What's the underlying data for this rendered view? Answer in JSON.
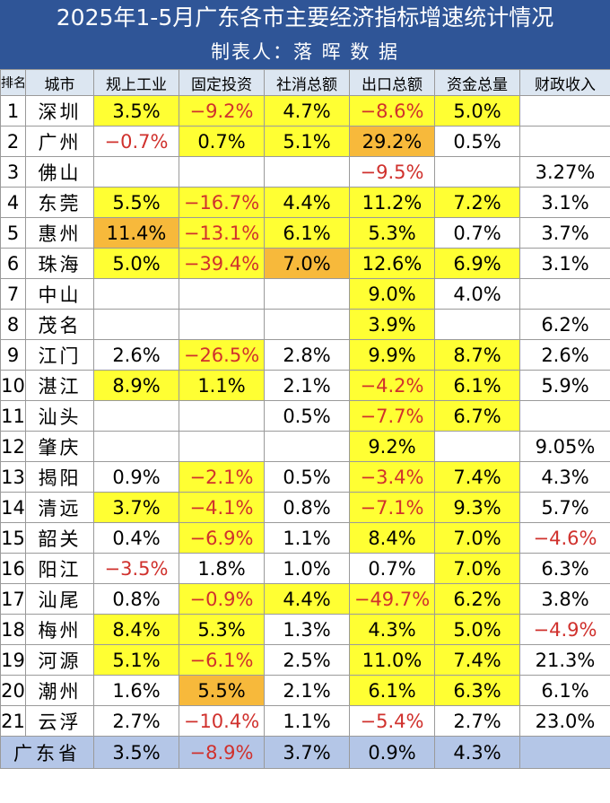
{
  "title": "2025年1-5月广东各市主要经济指标增速统计情况",
  "subtitle": "制表人：落 晖 数 据",
  "colors": {
    "header_bg": "#2f5597",
    "column_header_bg": "#dce6f1",
    "highlight": "#ffff33",
    "top_highlight": "#f7b93b",
    "negative_text": "#d0312d",
    "total_row_bg": "#b4c6e7"
  },
  "chart_data": {
    "type": "table",
    "columns": [
      "排名",
      "城市",
      "规上工业",
      "固定投资",
      "社消总额",
      "出口总额",
      "资金总量",
      "财政收入"
    ],
    "rows": [
      {
        "rank": "1",
        "city": "深圳",
        "cells": [
          {
            "v": "3.5%",
            "bg": "hl"
          },
          {
            "v": "−9.2%",
            "bg": "hl",
            "neg": true
          },
          {
            "v": "4.7%",
            "bg": "hl"
          },
          {
            "v": "−8.6%",
            "bg": "hl",
            "neg": true
          },
          {
            "v": "5.0%",
            "bg": "hl"
          },
          {
            "v": ""
          }
        ]
      },
      {
        "rank": "2",
        "city": "广州",
        "cells": [
          {
            "v": "−0.7%",
            "neg": true
          },
          {
            "v": "0.7%",
            "bg": "hl"
          },
          {
            "v": "5.1%",
            "bg": "hl"
          },
          {
            "v": "29.2%",
            "bg": "top"
          },
          {
            "v": "0.5%"
          },
          {
            "v": ""
          }
        ]
      },
      {
        "rank": "3",
        "city": "佛山",
        "cells": [
          {
            "v": ""
          },
          {
            "v": ""
          },
          {
            "v": ""
          },
          {
            "v": "−9.5%",
            "neg": true
          },
          {
            "v": ""
          },
          {
            "v": "3.27%"
          }
        ]
      },
      {
        "rank": "4",
        "city": "东莞",
        "cells": [
          {
            "v": "5.5%",
            "bg": "hl"
          },
          {
            "v": "−16.7%",
            "bg": "hl",
            "neg": true
          },
          {
            "v": "4.4%",
            "bg": "hl"
          },
          {
            "v": "11.2%",
            "bg": "hl"
          },
          {
            "v": "7.2%",
            "bg": "hl"
          },
          {
            "v": "3.1%"
          }
        ]
      },
      {
        "rank": "5",
        "city": "惠州",
        "cells": [
          {
            "v": "11.4%",
            "bg": "top"
          },
          {
            "v": "−13.1%",
            "bg": "hl",
            "neg": true
          },
          {
            "v": "6.1%",
            "bg": "hl"
          },
          {
            "v": "5.3%",
            "bg": "hl"
          },
          {
            "v": "0.7%"
          },
          {
            "v": "3.7%"
          }
        ]
      },
      {
        "rank": "6",
        "city": "珠海",
        "cells": [
          {
            "v": "5.0%",
            "bg": "hl"
          },
          {
            "v": "−39.4%",
            "bg": "hl",
            "neg": true
          },
          {
            "v": "7.0%",
            "bg": "top"
          },
          {
            "v": "12.6%",
            "bg": "hl"
          },
          {
            "v": "6.9%",
            "bg": "hl"
          },
          {
            "v": "3.1%"
          }
        ]
      },
      {
        "rank": "7",
        "city": "中山",
        "cells": [
          {
            "v": ""
          },
          {
            "v": ""
          },
          {
            "v": ""
          },
          {
            "v": "9.0%",
            "bg": "hl"
          },
          {
            "v": "4.0%"
          },
          {
            "v": ""
          }
        ]
      },
      {
        "rank": "8",
        "city": "茂名",
        "cells": [
          {
            "v": ""
          },
          {
            "v": ""
          },
          {
            "v": ""
          },
          {
            "v": "3.9%",
            "bg": "hl"
          },
          {
            "v": ""
          },
          {
            "v": "6.2%"
          }
        ]
      },
      {
        "rank": "9",
        "city": "江门",
        "cells": [
          {
            "v": "2.6%"
          },
          {
            "v": "−26.5%",
            "bg": "hl",
            "neg": true
          },
          {
            "v": "2.8%"
          },
          {
            "v": "9.9%",
            "bg": "hl"
          },
          {
            "v": "8.7%",
            "bg": "hl"
          },
          {
            "v": "2.6%"
          }
        ]
      },
      {
        "rank": "10",
        "city": "湛江",
        "cells": [
          {
            "v": "8.9%",
            "bg": "hl"
          },
          {
            "v": "1.1%",
            "bg": "hl"
          },
          {
            "v": "2.1%"
          },
          {
            "v": "−4.2%",
            "bg": "hl",
            "neg": true
          },
          {
            "v": "6.1%",
            "bg": "hl"
          },
          {
            "v": "5.9%"
          }
        ]
      },
      {
        "rank": "11",
        "city": "汕头",
        "cells": [
          {
            "v": ""
          },
          {
            "v": ""
          },
          {
            "v": "0.5%"
          },
          {
            "v": "−7.7%",
            "bg": "hl",
            "neg": true
          },
          {
            "v": "6.7%",
            "bg": "hl"
          },
          {
            "v": ""
          }
        ]
      },
      {
        "rank": "12",
        "city": "肇庆",
        "cells": [
          {
            "v": ""
          },
          {
            "v": ""
          },
          {
            "v": ""
          },
          {
            "v": "9.2%",
            "bg": "hl"
          },
          {
            "v": ""
          },
          {
            "v": "9.05%"
          }
        ]
      },
      {
        "rank": "13",
        "city": "揭阳",
        "cells": [
          {
            "v": "0.9%"
          },
          {
            "v": "−2.1%",
            "bg": "hl",
            "neg": true
          },
          {
            "v": "0.5%"
          },
          {
            "v": "−3.4%",
            "bg": "hl",
            "neg": true
          },
          {
            "v": "7.4%",
            "bg": "hl"
          },
          {
            "v": "4.3%"
          }
        ]
      },
      {
        "rank": "14",
        "city": "清远",
        "cells": [
          {
            "v": "3.7%",
            "bg": "hl"
          },
          {
            "v": "−4.1%",
            "bg": "hl",
            "neg": true
          },
          {
            "v": "0.8%"
          },
          {
            "v": "−7.1%",
            "bg": "hl",
            "neg": true
          },
          {
            "v": "9.3%",
            "bg": "hl"
          },
          {
            "v": "5.7%"
          }
        ]
      },
      {
        "rank": "15",
        "city": "韶关",
        "cells": [
          {
            "v": "0.4%"
          },
          {
            "v": "−6.9%",
            "bg": "hl",
            "neg": true
          },
          {
            "v": "1.1%"
          },
          {
            "v": "8.4%",
            "bg": "hl"
          },
          {
            "v": "7.0%",
            "bg": "hl"
          },
          {
            "v": "−4.6%",
            "neg": true
          }
        ]
      },
      {
        "rank": "16",
        "city": "阳江",
        "cells": [
          {
            "v": "−3.5%",
            "neg": true
          },
          {
            "v": "1.8%"
          },
          {
            "v": "1.0%"
          },
          {
            "v": "0.7%"
          },
          {
            "v": "7.0%",
            "bg": "hl"
          },
          {
            "v": "6.3%"
          }
        ]
      },
      {
        "rank": "17",
        "city": "汕尾",
        "cells": [
          {
            "v": "0.8%"
          },
          {
            "v": "−0.9%",
            "bg": "hl",
            "neg": true
          },
          {
            "v": "4.4%",
            "bg": "hl"
          },
          {
            "v": "−49.7%",
            "bg": "hl",
            "neg": true
          },
          {
            "v": "6.2%",
            "bg": "hl"
          },
          {
            "v": "3.8%"
          }
        ]
      },
      {
        "rank": "18",
        "city": "梅州",
        "cells": [
          {
            "v": "8.4%",
            "bg": "hl"
          },
          {
            "v": "5.3%",
            "bg": "hl"
          },
          {
            "v": "1.3%"
          },
          {
            "v": "4.3%",
            "bg": "hl"
          },
          {
            "v": "5.0%",
            "bg": "hl"
          },
          {
            "v": "−4.9%",
            "neg": true
          }
        ]
      },
      {
        "rank": "19",
        "city": "河源",
        "cells": [
          {
            "v": "5.1%",
            "bg": "hl"
          },
          {
            "v": "−6.1%",
            "bg": "hl",
            "neg": true
          },
          {
            "v": "2.5%"
          },
          {
            "v": "11.0%",
            "bg": "hl"
          },
          {
            "v": "7.4%",
            "bg": "hl"
          },
          {
            "v": "21.3%"
          }
        ]
      },
      {
        "rank": "20",
        "city": "潮州",
        "cells": [
          {
            "v": "1.6%"
          },
          {
            "v": "5.5%",
            "bg": "top"
          },
          {
            "v": "2.1%"
          },
          {
            "v": "6.1%",
            "bg": "hl"
          },
          {
            "v": "6.3%",
            "bg": "hl"
          },
          {
            "v": "6.1%"
          }
        ]
      },
      {
        "rank": "21",
        "city": "云浮",
        "cells": [
          {
            "v": "2.7%"
          },
          {
            "v": "−10.4%",
            "neg": true
          },
          {
            "v": "1.1%"
          },
          {
            "v": "−5.4%",
            "neg": true
          },
          {
            "v": "2.7%"
          },
          {
            "v": "23.0%"
          }
        ]
      }
    ],
    "total": {
      "label": "广东省",
      "cells": [
        {
          "v": "3.5%"
        },
        {
          "v": "−8.9%",
          "neg": true
        },
        {
          "v": "3.7%"
        },
        {
          "v": "0.9%"
        },
        {
          "v": "4.3%"
        },
        {
          "v": ""
        }
      ]
    }
  }
}
